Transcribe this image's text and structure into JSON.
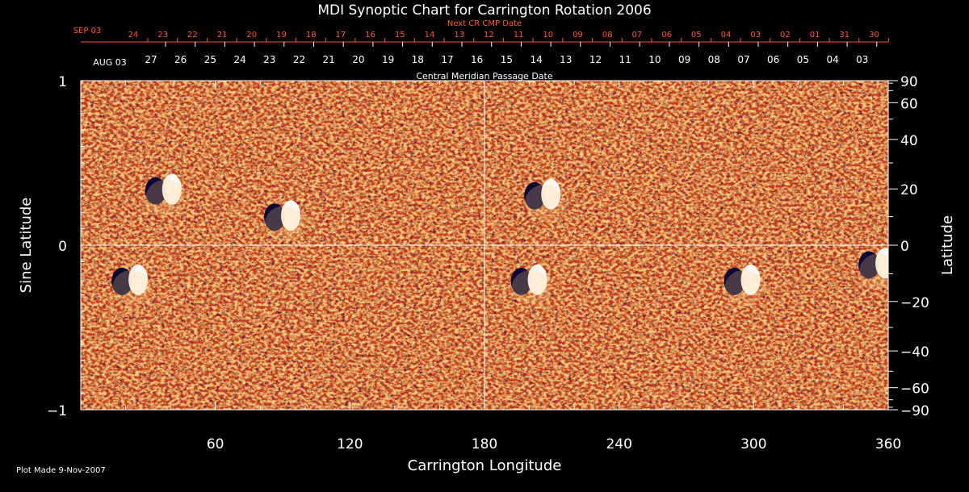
{
  "chart_data": {
    "type": "heatmap",
    "title": "MDI Synoptic Chart for Carrington Rotation 2006",
    "xlabel": "Carrington Longitude",
    "ylabel_left": "Sine Latitude",
    "ylabel_right": "Latitude",
    "xlim": [
      0,
      360
    ],
    "ylim": [
      -1,
      1
    ],
    "x_ticks": [
      60,
      120,
      180,
      240,
      300,
      360
    ],
    "y_ticks_left": [
      1,
      0,
      -1
    ],
    "y_ticks_left_labels": [
      "1",
      "0",
      "−1"
    ],
    "y_ticks_right_labels": [
      "90",
      "60",
      "40",
      "20",
      "0",
      "−20",
      "−40",
      "−60",
      "−90"
    ],
    "y_ticks_right_degrees": [
      90,
      60,
      40,
      20,
      0,
      -20,
      -40,
      -60,
      -90
    ],
    "cmp_axis_label": "Central Meridian Passage Date",
    "cmp_start_label": "AUG 03",
    "cmp_dates": [
      "27",
      "26",
      "25",
      "24",
      "23",
      "22",
      "21",
      "20",
      "19",
      "18",
      "17",
      "16",
      "15",
      "14",
      "13",
      "12",
      "11",
      "10",
      "09",
      "08",
      "07",
      "06",
      "05",
      "04",
      "03"
    ],
    "next_cr_label": "Next CR CMP Date",
    "next_cr_start_label": "SEP 03",
    "next_cr_dates": [
      "24",
      "23",
      "22",
      "21",
      "20",
      "19",
      "18",
      "17",
      "16",
      "15",
      "14",
      "13",
      "12",
      "11",
      "10",
      "09",
      "08",
      "07",
      "06",
      "05",
      "04",
      "03",
      "02",
      "01",
      "31",
      "30"
    ],
    "grid": "lines at longitude 180 and sine latitude 0",
    "colors": {
      "background": "#000000",
      "text": "#ffffff",
      "next_cr_text": "#ff5a2a",
      "map_base": "#c8421a",
      "positive_polarity": "#ffffff",
      "negative_polarity": "#000033"
    },
    "active_regions": [
      {
        "lon": 90,
        "sinlat": 0.17,
        "polarity": "mixed"
      },
      {
        "lon": 206,
        "sinlat": 0.3,
        "polarity": "mixed"
      },
      {
        "lon": 200,
        "sinlat": -0.22,
        "polarity": "mixed"
      },
      {
        "lon": 295,
        "sinlat": -0.22,
        "polarity": "mixed"
      },
      {
        "lon": 355,
        "sinlat": -0.12,
        "polarity": "mixed"
      },
      {
        "lon": 22,
        "sinlat": -0.22,
        "polarity": "mixed"
      },
      {
        "lon": 37,
        "sinlat": 0.33,
        "polarity": "mixed"
      }
    ]
  },
  "footer": {
    "plot_made": "Plot Made  9-Nov-2007"
  }
}
